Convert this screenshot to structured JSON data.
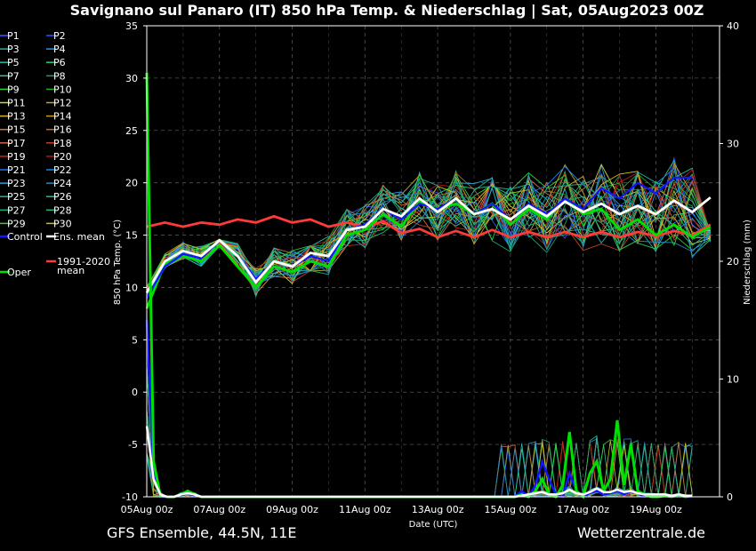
{
  "chart_data": {
    "type": "line",
    "title": "Savignano sul Panaro  (IT)  850 hPa Temp. & Niederschlag | Sat, 05Aug2023 00Z",
    "ylabel": "850 hPa Temp. (°C)",
    "y2label": "Niederschlag (mm)",
    "xlabel": "Date (UTC)",
    "ylim": [
      -10,
      35
    ],
    "y2lim": [
      0,
      40
    ],
    "yticks": [
      -10,
      -5,
      0,
      5,
      10,
      15,
      20,
      25,
      30,
      35
    ],
    "y2ticks": [
      0,
      10,
      20,
      30,
      40
    ],
    "xlim": [
      0,
      15.75
    ],
    "xticks": [
      0,
      2,
      4,
      6,
      8,
      10,
      12,
      14
    ],
    "xticklabels": [
      "05Aug 00z",
      "07Aug 00z",
      "09Aug 00z",
      "11Aug 00z",
      "13Aug 00z",
      "15Aug 00z",
      "17Aug 00z",
      "19Aug 00z"
    ],
    "grid": true,
    "legend_position": "left",
    "legend": [
      "P1",
      "P2",
      "P3",
      "P4",
      "P5",
      "P6",
      "P7",
      "P8",
      "P9",
      "P10",
      "P11",
      "P12",
      "P13",
      "P14",
      "P15",
      "P16",
      "P17",
      "P18",
      "P19",
      "P20",
      "P21",
      "P22",
      "P23",
      "P24",
      "P25",
      "P26",
      "P27",
      "P28",
      "P29",
      "P30",
      "Control",
      "Ens. mean",
      "1991-2020 mean",
      "Oper"
    ],
    "member_colors": [
      "#3a58ff",
      "#2f52ff",
      "#29a8a0",
      "#2f8fe0",
      "#23b8b0",
      "#1fcf80",
      "#30c888",
      "#1e9b5a",
      "#2acc40",
      "#1fa92a",
      "#d4d43a",
      "#bba830",
      "#d9b030",
      "#c89828",
      "#c87a3a",
      "#b86a2a",
      "#c86848",
      "#c0402a",
      "#c82020",
      "#b01818",
      "#2a6ee8",
      "#1f80e8",
      "#2aa0d0",
      "#2888b8",
      "#20b0a0",
      "#20c090",
      "#18a878",
      "#20b870",
      "#30d040",
      "#c8c020"
    ],
    "series_colors": {
      "control": "#1414ff",
      "mean": "#ffffff",
      "climate": "#ff3a3a",
      "oper": "#00e000"
    },
    "footer_left": "GFS Ensemble, 44.5N, 11E",
    "footer_right": "Wetterzentrale.de",
    "temp": {
      "control": [
        9.0,
        12.0,
        13.2,
        12.8,
        14.5,
        13.0,
        10.8,
        12.5,
        12.0,
        13.0,
        12.5,
        15.5,
        16.0,
        17.5,
        16.5,
        18.0,
        17.5,
        18.5,
        17.0,
        18.0,
        16.5,
        18.0,
        17.0,
        18.5,
        17.5,
        19.5,
        18.5,
        20.0,
        19.0,
        20.5,
        20.5
      ],
      "mean": [
        9.5,
        12.5,
        13.5,
        13.0,
        14.5,
        13.0,
        10.5,
        12.5,
        12.0,
        13.3,
        13.0,
        15.5,
        15.8,
        17.5,
        16.8,
        18.5,
        17.2,
        18.5,
        17.0,
        17.5,
        16.5,
        17.8,
        16.8,
        18.2,
        17.2,
        18.0,
        17.0,
        17.8,
        17.0,
        18.3,
        17.2,
        18.6
      ],
      "climate": [
        15.8,
        16.2,
        15.8,
        16.2,
        16.0,
        16.5,
        16.2,
        16.8,
        16.2,
        16.5,
        15.8,
        16.2,
        15.8,
        16.3,
        15.2,
        15.6,
        14.8,
        15.4,
        14.8,
        15.5,
        14.8,
        15.3,
        14.8,
        15.3,
        14.8,
        15.3,
        14.8,
        15.3,
        14.9,
        15.4,
        15.0,
        16.0
      ],
      "oper": [
        8.0,
        12.3,
        13.0,
        12.5,
        14.0,
        12.0,
        10.0,
        12.0,
        11.5,
        12.5,
        12.0,
        15.0,
        15.5,
        17.0,
        15.8,
        18.2,
        17.5,
        18.0,
        17.0,
        18.0,
        16.0,
        17.5,
        16.5,
        18.5,
        17.0,
        17.5,
        15.5,
        16.5,
        15.0,
        16.0,
        14.8,
        15.8
      ]
    },
    "precip": {
      "oper": [
        36.0,
        3.0,
        0.1,
        0,
        0,
        0.2,
        0.5,
        0.2,
        0,
        0,
        0,
        0,
        0,
        0,
        0,
        0,
        0,
        0,
        0,
        0,
        0,
        0,
        0,
        0,
        0,
        0,
        0,
        0,
        0,
        0,
        0,
        0,
        0,
        0,
        0,
        0,
        0,
        0,
        0,
        0,
        0,
        0,
        0,
        0,
        0,
        0,
        0,
        0,
        0,
        0,
        0,
        0,
        0,
        0,
        0,
        0.2,
        0,
        0.5,
        1.5,
        0.2,
        0,
        1.0,
        5.5,
        0.5,
        0,
        2.0,
        3.0,
        0.5,
        1.5,
        6.5,
        1.0,
        4.5,
        0.5,
        0.2,
        0,
        0,
        0.1,
        0,
        0.2,
        0,
        0.1
      ],
      "control": [
        15.0,
        2.0,
        0,
        0,
        0,
        0.1,
        0.3,
        0.1,
        0,
        0,
        0,
        0,
        0,
        0,
        0,
        0,
        0,
        0,
        0,
        0,
        0,
        0,
        0,
        0,
        0,
        0,
        0,
        0,
        0,
        0,
        0,
        0,
        0,
        0,
        0,
        0,
        0,
        0,
        0,
        0,
        0,
        0,
        0,
        0,
        0,
        0,
        0,
        0,
        0,
        0,
        0,
        0,
        0,
        0,
        0,
        0.5,
        0,
        1.0,
        3.0,
        1.5,
        0.2,
        0,
        2.0,
        0.5,
        0,
        0.3,
        0.5,
        0.2,
        0.3,
        0.5,
        0.2,
        0.5,
        0.3,
        0,
        0.2,
        0,
        0.1,
        0,
        0.1,
        0,
        0
      ],
      "mean": [
        6.0,
        1.5,
        0.2,
        0,
        0,
        0.2,
        0.3,
        0.2,
        0,
        0,
        0,
        0,
        0,
        0,
        0,
        0,
        0,
        0,
        0,
        0,
        0,
        0,
        0,
        0,
        0,
        0,
        0,
        0,
        0,
        0,
        0,
        0,
        0,
        0,
        0,
        0,
        0,
        0,
        0,
        0,
        0,
        0,
        0,
        0,
        0,
        0,
        0,
        0,
        0,
        0,
        0,
        0,
        0,
        0,
        0,
        0.1,
        0.2,
        0.3,
        0.4,
        0.2,
        0.2,
        0.3,
        0.6,
        0.3,
        0.2,
        0.4,
        0.7,
        0.4,
        0.4,
        0.6,
        0.4,
        0.5,
        0.3,
        0.2,
        0.2,
        0.2,
        0.2,
        0.1,
        0.2,
        0.1,
        0.1
      ]
    }
  }
}
